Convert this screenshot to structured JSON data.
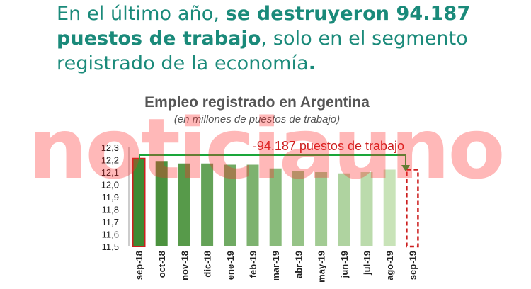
{
  "headline": {
    "part1": "En el último año, ",
    "bold1": "se destruyeron 94.187",
    "bold2": "puestos de trabajo",
    "part2": ", solo en el segmento registrado de la economía",
    "period": "."
  },
  "watermark": "noticiauno",
  "colors": {
    "headline": "#1a8a7a",
    "arrow": "#1aa63a",
    "highlight": "#cc1f1f",
    "bar_dark": "#3e8a32",
    "bar_light": "#c8e3b8"
  },
  "chart_data": {
    "type": "bar",
    "title": "Empleo registrado en Argentina",
    "subtitle": "(en millones de puestos de trabajo)",
    "categories": [
      "sep-18",
      "oct-18",
      "nov-18",
      "dic-18",
      "ene-19",
      "feb-19",
      "mar-19",
      "abr-19",
      "may-19",
      "jun-19",
      "jul-19",
      "ago-19",
      "sep-19"
    ],
    "values": [
      12.21,
      12.19,
      12.17,
      12.17,
      12.16,
      12.16,
      12.13,
      12.11,
      12.1,
      12.09,
      12.1,
      12.12,
      12.12
    ],
    "ylim": [
      11.5,
      12.3
    ],
    "yticks": [
      "11,5",
      "11,6",
      "11,7",
      "11,8",
      "11,9",
      "12,0",
      "12,1",
      "12,2",
      "12,3"
    ],
    "grid": false,
    "legend": "none",
    "annotation": "-94.187 puestos de trabajo",
    "highlighted": [
      "sep-18",
      "sep-19"
    ],
    "dashed": [
      "sep-19"
    ]
  }
}
